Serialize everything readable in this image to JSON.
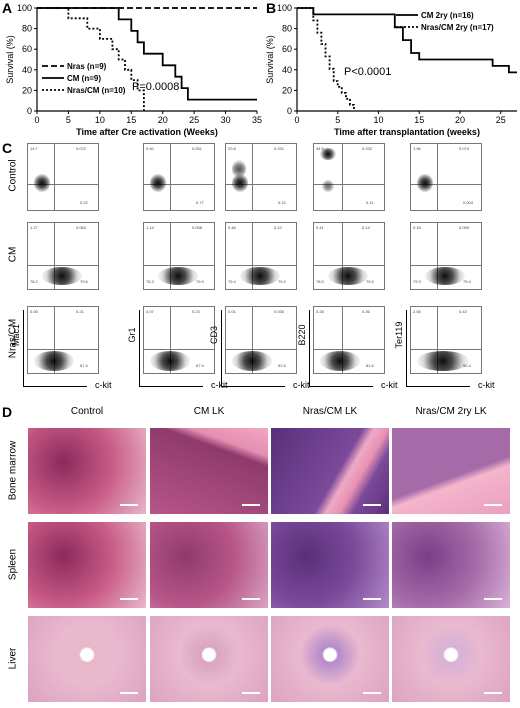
{
  "panels": {
    "a": "A",
    "b": "B",
    "c": "C",
    "d": "D"
  },
  "chart_data": [
    {
      "type": "line",
      "panel": "A",
      "xlabel": "Time after Cre activation (Weeks)",
      "ylabel": "Survival (%)",
      "xlim": [
        0,
        35
      ],
      "ylim": [
        0,
        100
      ],
      "xticks": [
        "0",
        "5",
        "10",
        "15",
        "20",
        "25",
        "30",
        "35"
      ],
      "yticks": [
        "0",
        "20",
        "40",
        "60",
        "80",
        "100"
      ],
      "annotation": "P=0.0008",
      "legend": [
        "Nras (n=9)",
        "CM (n=9)",
        "Nras/CM (n=10)"
      ],
      "series": [
        {
          "name": "Nras (n=9)",
          "style": "dashed",
          "x": [
            0,
            35
          ],
          "y": [
            100,
            100
          ]
        },
        {
          "name": "CM (n=9)",
          "style": "solid",
          "x": [
            0,
            13,
            13,
            15,
            15,
            16,
            16,
            17,
            17,
            20,
            20,
            22,
            22,
            23,
            23,
            24,
            24,
            35
          ],
          "y": [
            100,
            100,
            88.9,
            88.9,
            77.8,
            77.8,
            66.7,
            66.7,
            55.6,
            55.6,
            44.4,
            44.4,
            33.3,
            33.3,
            22.2,
            22.2,
            11.1,
            11.1
          ]
        },
        {
          "name": "Nras/CM (n=10)",
          "style": "dotted",
          "x": [
            0,
            5,
            5,
            8,
            8,
            10,
            10,
            12,
            12,
            13,
            13,
            14,
            14,
            15,
            15,
            16,
            16,
            17,
            17
          ],
          "y": [
            100,
            100,
            90,
            90,
            80,
            80,
            70,
            70,
            60,
            60,
            50,
            50,
            40,
            40,
            30,
            30,
            20,
            20,
            0
          ]
        }
      ]
    },
    {
      "type": "line",
      "panel": "B",
      "xlabel": "Time after transplantation (weeks)",
      "ylabel": "Survival (%)",
      "xlim": [
        0,
        27
      ],
      "ylim": [
        0,
        100
      ],
      "xticks": [
        "0",
        "5",
        "10",
        "15",
        "20",
        "25"
      ],
      "yticks": [
        "0",
        "20",
        "40",
        "60",
        "80",
        "100"
      ],
      "annotation": "P<0.0001",
      "legend": [
        "CM 2ry (n=16)",
        "Nras/CM 2ry (n=17)"
      ],
      "series": [
        {
          "name": "CM 2ry (n=16)",
          "style": "solid",
          "x": [
            0,
            2,
            2,
            12,
            12,
            13,
            13,
            14,
            14,
            15,
            15,
            24,
            24,
            26,
            26,
            27
          ],
          "y": [
            100,
            100,
            93.8,
            93.8,
            81.3,
            81.3,
            68.8,
            68.8,
            56.3,
            56.3,
            50,
            50,
            43.8,
            43.8,
            37.5,
            37.5
          ]
        },
        {
          "name": "Nras/CM 2ry (n=17)",
          "style": "dotted",
          "x": [
            0,
            2,
            2,
            2.5,
            2.5,
            3,
            3,
            3.5,
            3.5,
            4,
            4,
            4.5,
            4.5,
            5,
            5,
            5.5,
            5.5,
            6,
            6,
            6.5,
            6.5,
            7,
            7
          ],
          "y": [
            100,
            100,
            88,
            88,
            76,
            76,
            65,
            65,
            53,
            53,
            41,
            41,
            29,
            29,
            23.5,
            23.5,
            17.6,
            17.6,
            11.8,
            11.8,
            5.9,
            5.9,
            0
          ]
        }
      ]
    }
  ],
  "flow": {
    "rows": [
      "Control",
      "CM",
      "Nras/CM"
    ],
    "markers": [
      "Mac1",
      "Gr1",
      "CD3",
      "B220",
      "Ter119"
    ],
    "xaxis": "c-kit",
    "quadrants": [
      [
        [
          "14.7",
          "0.072",
          "",
          "0.22"
        ],
        [
          "9.40",
          "0.051",
          "",
          "0.77"
        ],
        [
          "20.8",
          "0.031",
          "",
          "0.12"
        ],
        [
          "44.5",
          "0.032",
          "",
          "0.11"
        ],
        [
          "1.96",
          "0.074",
          "",
          "0.004"
        ]
      ],
      [
        [
          "1.27",
          "0.064",
          "78.2",
          "79.6"
        ],
        [
          "1.14",
          "0.058",
          "78.3",
          "79.9"
        ],
        [
          "0.46",
          "0.12",
          "79.4",
          "79.3"
        ],
        [
          "0.41",
          "0.14",
          "78.5",
          "79.5"
        ],
        [
          "0.18",
          "0.059",
          "79.3",
          "79.4"
        ]
      ],
      [
        [
          "0.06",
          "0.21",
          "",
          "67.4"
        ],
        [
          "4.07",
          "0.23",
          "",
          "67.4"
        ],
        [
          "0.01",
          "0.035",
          "",
          "52.5"
        ],
        [
          "0.28",
          "0.26",
          "",
          "81.6"
        ],
        [
          "2.06",
          "0.43",
          "",
          "52.4"
        ]
      ]
    ]
  },
  "histology": {
    "cols": [
      "Control",
      "CM LK",
      "Nras/CM LK",
      "Nras/CM 2ry LK"
    ],
    "rows": [
      "Bone marrow",
      "Spleen",
      "Liver"
    ]
  }
}
